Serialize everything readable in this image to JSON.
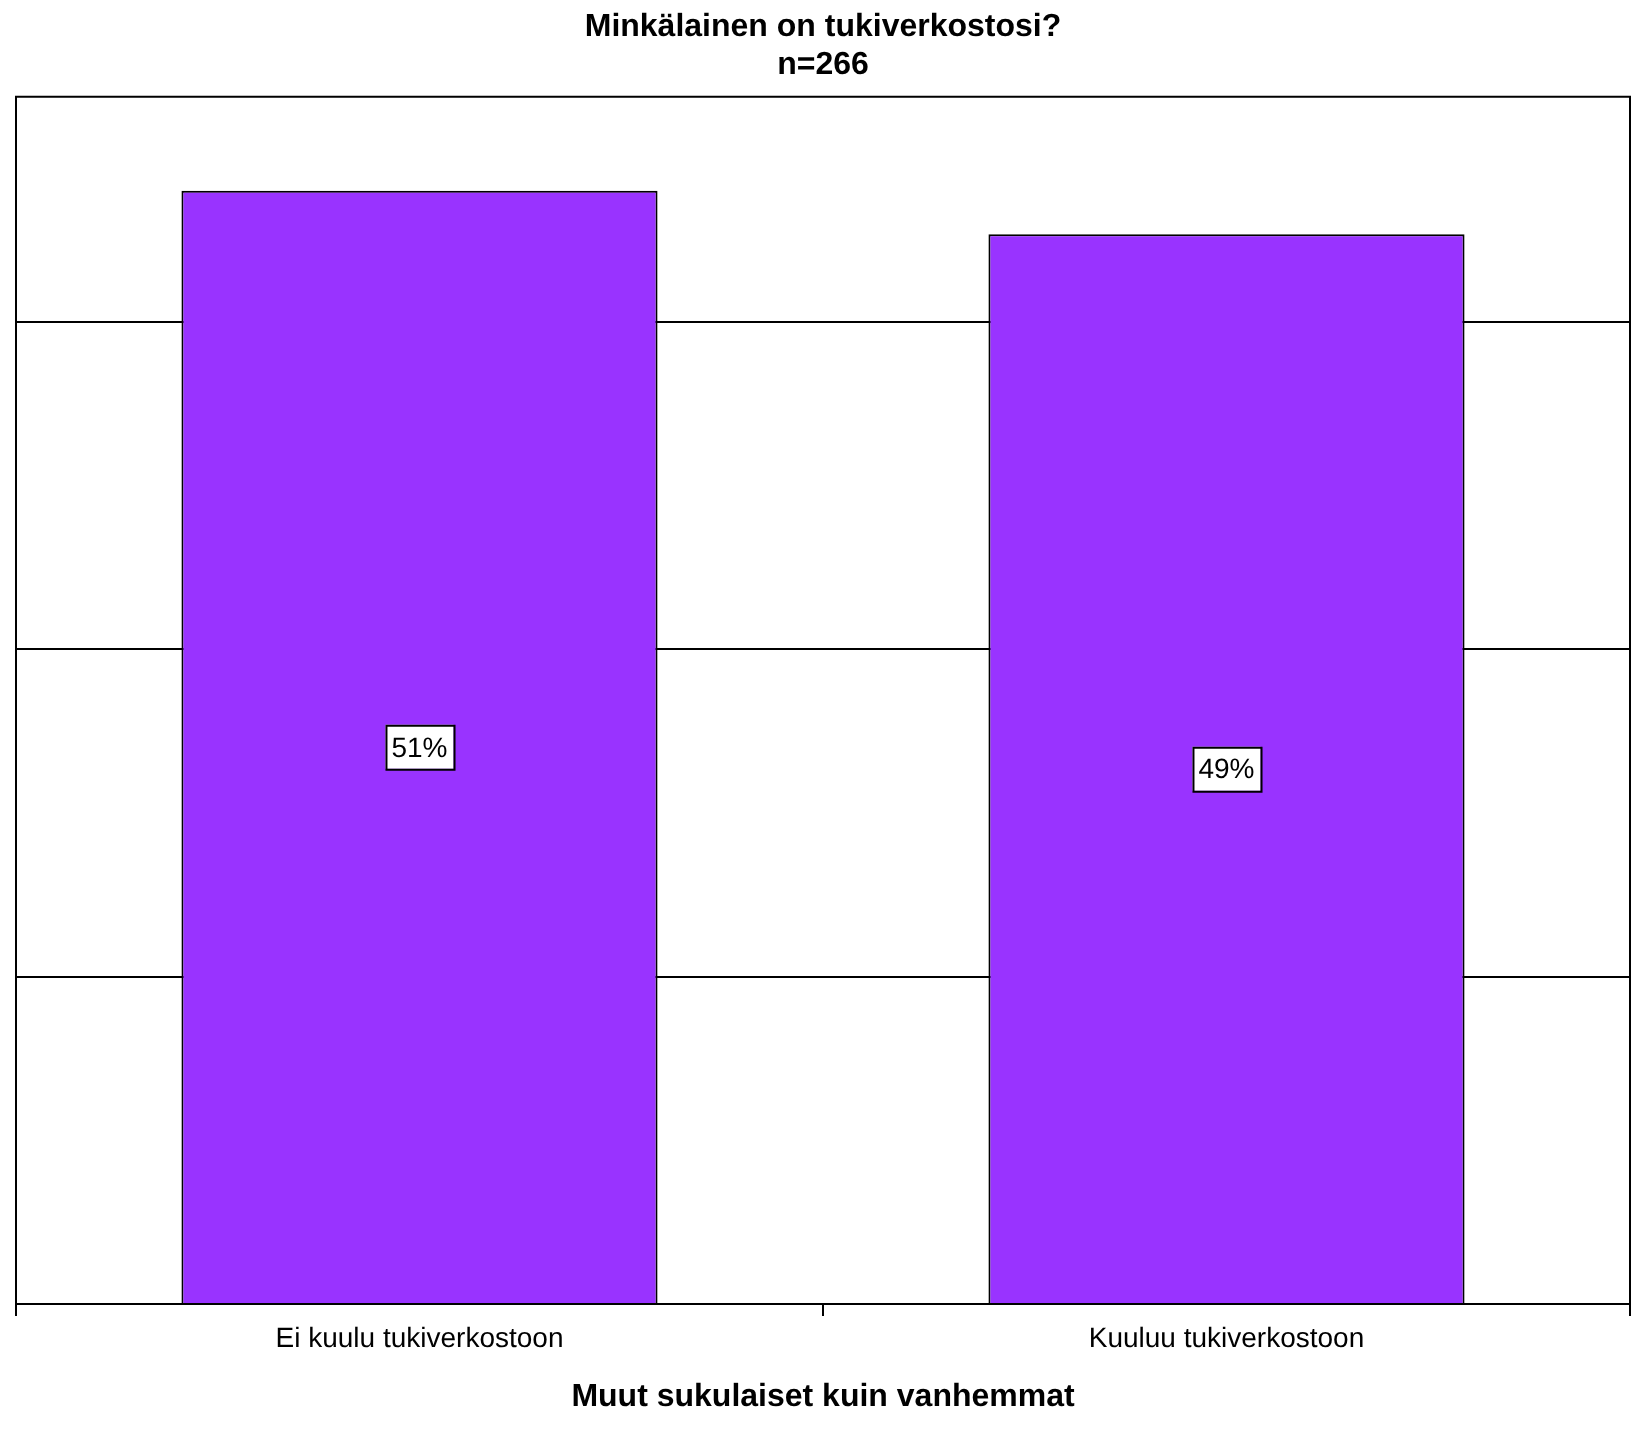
{
  "chart_data": {
    "type": "bar",
    "title": "Minkälainen on tukiverkostosi?",
    "subtitle": "n=266",
    "xlabel": "Muut sukulaiset kuin vanhemmat",
    "categories": [
      "Ei kuulu tukiverkostoon",
      "Kuuluu tukiverkostoon"
    ],
    "values": [
      51,
      49
    ],
    "value_labels": [
      "51%",
      "49%"
    ],
    "color": "#9933ff",
    "ylim": [
      0,
      55.3
    ],
    "yticks": [
      {
        "value": 0,
        "label": null
      },
      {
        "value": 15,
        "label": null
      },
      {
        "value": 30,
        "label": null
      },
      {
        "value": 45,
        "label": null
      }
    ],
    "grid": "y",
    "legend": false
  }
}
